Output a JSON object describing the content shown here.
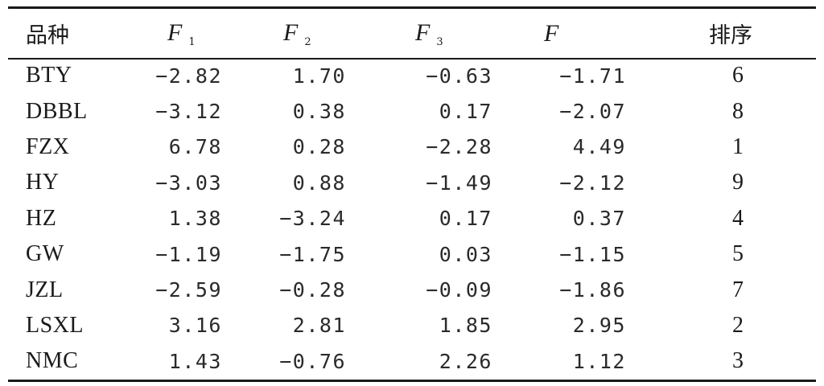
{
  "table": {
    "headers": {
      "name": "品种",
      "f1_letter": "F",
      "f1_sub": "1",
      "f2_letter": "F",
      "f2_sub": "2",
      "f3_letter": "F",
      "f3_sub": "3",
      "f_letter": "F",
      "rank": "排序"
    },
    "rows": [
      {
        "name": "BTY",
        "f1": "−2.82",
        "f2": "1.70",
        "f3": "−0.63",
        "f": "−1.71",
        "rank": "6"
      },
      {
        "name": "DBBL",
        "f1": "−3.12",
        "f2": "0.38",
        "f3": "0.17",
        "f": "−2.07",
        "rank": "8"
      },
      {
        "name": "FZX",
        "f1": "6.78",
        "f2": "0.28",
        "f3": "−2.28",
        "f": "4.49",
        "rank": "1"
      },
      {
        "name": "HY",
        "f1": "−3.03",
        "f2": "0.88",
        "f3": "−1.49",
        "f": "−2.12",
        "rank": "9"
      },
      {
        "name": "HZ",
        "f1": "1.38",
        "f2": "−3.24",
        "f3": "0.17",
        "f": "0.37",
        "rank": "4"
      },
      {
        "name": "GW",
        "f1": "−1.19",
        "f2": "−1.75",
        "f3": "0.03",
        "f": "−1.15",
        "rank": "5"
      },
      {
        "name": "JZL",
        "f1": "−2.59",
        "f2": "−0.28",
        "f3": "−0.09",
        "f": "−1.86",
        "rank": "7"
      },
      {
        "name": "LSXL",
        "f1": "3.16",
        "f2": "2.81",
        "f3": "1.85",
        "f": "2.95",
        "rank": "2"
      },
      {
        "name": "NMC",
        "f1": "1.43",
        "f2": "−0.76",
        "f3": "2.26",
        "f": "1.12",
        "rank": "3"
      }
    ]
  }
}
